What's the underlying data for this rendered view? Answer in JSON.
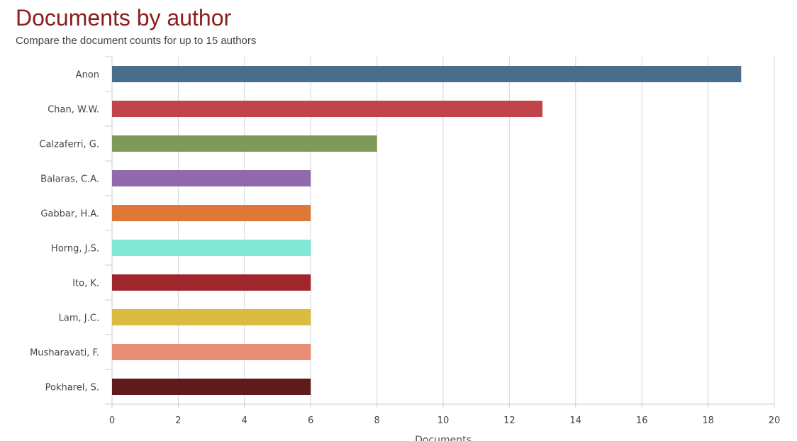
{
  "header": {
    "title": "Documents by author",
    "subtitle": "Compare the document counts for up to 15 authors"
  },
  "chart_data": {
    "type": "bar",
    "orientation": "horizontal",
    "title": "Documents by author",
    "subtitle": "Compare the document counts for up to 15 authors",
    "xlabel": "Documents",
    "ylabel": "",
    "xlim": [
      0,
      20
    ],
    "x_ticks": [
      0,
      2,
      4,
      6,
      8,
      10,
      12,
      14,
      16,
      18,
      20
    ],
    "grid": true,
    "categories": [
      "Anon",
      "Chan, W.W.",
      "Calzaferri, G.",
      "Balaras, C.A.",
      "Gabbar, H.A.",
      "Horng, J.S.",
      "Ito, K.",
      "Lam, J.C.",
      "Musharavati, F.",
      "Pokharel, S."
    ],
    "values": [
      19,
      13,
      8,
      6,
      6,
      6,
      6,
      6,
      6,
      6
    ],
    "colors": [
      "#4a6d8c",
      "#c0444a",
      "#7d9a56",
      "#9169ad",
      "#de7834",
      "#80e8d5",
      "#a0262c",
      "#d9bc40",
      "#e88c72",
      "#5e1a1c"
    ]
  }
}
